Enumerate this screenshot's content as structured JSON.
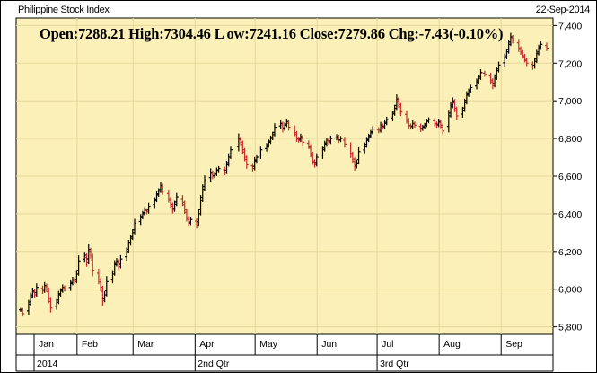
{
  "header": {
    "title": "Philippine Stock Index",
    "date": "22-Sep-2014",
    "ohlc": {
      "open": "Open:7288.21",
      "high": "High:7304.46",
      "low": "L ow:7241.16",
      "close": "Close:7279.86",
      "change": "Chg:-7.43(-0.10%)"
    }
  },
  "colors": {
    "plot_bg": "#fbf0b8",
    "grid": "#e6d79a",
    "up_bar": "#000000",
    "down_bar": "#cc2a2a",
    "frame": "#000000"
  },
  "chart_data": {
    "type": "ohlc",
    "title": "Philippine Stock Index",
    "ylim": [
      5760,
      7440
    ],
    "yticks": [
      "5,800",
      "6,000",
      "6,200",
      "6,400",
      "6,600",
      "6,800",
      "7,000",
      "7,200",
      "7,400"
    ],
    "ytick_values": [
      5800,
      6000,
      6200,
      6400,
      6600,
      6800,
      7000,
      7200,
      7400
    ],
    "x_axis": {
      "months": [
        "Jan",
        "Feb",
        "Mar",
        "Apr",
        "May",
        "Jun",
        "Jul",
        "Aug",
        "Sep"
      ],
      "periods": [
        "2014",
        "2nd Qtr",
        "3rd Qtr"
      ],
      "start": "2014-01-02",
      "end": "2014-09-22"
    },
    "grid": true,
    "series": [
      {
        "points": [
          [
            "2014-01-02",
            5890
          ],
          [
            "2014-01-03",
            5870
          ],
          [
            "2014-01-06",
            5920
          ],
          [
            "2014-01-07",
            5960
          ],
          [
            "2014-01-08",
            5990
          ],
          [
            "2014-01-09",
            5970
          ],
          [
            "2014-01-10",
            6010
          ],
          [
            "2014-01-13",
            5990
          ],
          [
            "2014-01-14",
            6020
          ],
          [
            "2014-01-15",
            6000
          ],
          [
            "2014-01-16",
            5950
          ],
          [
            "2014-01-17",
            5900
          ],
          [
            "2014-01-20",
            5930
          ],
          [
            "2014-01-21",
            5970
          ],
          [
            "2014-01-22",
            5990
          ],
          [
            "2014-01-23",
            6010
          ],
          [
            "2014-01-24",
            6000
          ],
          [
            "2014-01-27",
            6030
          ],
          [
            "2014-01-28",
            6050
          ],
          [
            "2014-01-29",
            6040
          ],
          [
            "2014-01-30",
            6080
          ],
          [
            "2014-01-31",
            6150
          ],
          [
            "2014-02-03",
            6180
          ],
          [
            "2014-02-04",
            6140
          ],
          [
            "2014-02-05",
            6210
          ],
          [
            "2014-02-06",
            6180
          ],
          [
            "2014-02-07",
            6100
          ],
          [
            "2014-02-10",
            6050
          ],
          [
            "2014-02-11",
            6010
          ],
          [
            "2014-02-12",
            5940
          ],
          [
            "2014-02-13",
            5970
          ],
          [
            "2014-02-14",
            6040
          ],
          [
            "2014-02-17",
            6080
          ],
          [
            "2014-02-18",
            6130
          ],
          [
            "2014-02-19",
            6150
          ],
          [
            "2014-02-20",
            6120
          ],
          [
            "2014-02-21",
            6160
          ],
          [
            "2014-02-24",
            6200
          ],
          [
            "2014-02-25",
            6240
          ],
          [
            "2014-02-26",
            6270
          ],
          [
            "2014-02-27",
            6300
          ],
          [
            "2014-02-28",
            6350
          ],
          [
            "2014-03-03",
            6380
          ],
          [
            "2014-03-04",
            6400
          ],
          [
            "2014-03-05",
            6420
          ],
          [
            "2014-03-06",
            6410
          ],
          [
            "2014-03-07",
            6440
          ],
          [
            "2014-03-10",
            6470
          ],
          [
            "2014-03-11",
            6500
          ],
          [
            "2014-03-12",
            6520
          ],
          [
            "2014-03-13",
            6550
          ],
          [
            "2014-03-14",
            6520
          ],
          [
            "2014-03-17",
            6480
          ],
          [
            "2014-03-18",
            6450
          ],
          [
            "2014-03-19",
            6420
          ],
          [
            "2014-03-20",
            6450
          ],
          [
            "2014-03-21",
            6490
          ],
          [
            "2014-03-24",
            6460
          ],
          [
            "2014-03-25",
            6420
          ],
          [
            "2014-03-26",
            6380
          ],
          [
            "2014-03-27",
            6350
          ],
          [
            "2014-03-28",
            6370
          ],
          [
            "2014-03-31",
            6340
          ],
          [
            "2014-04-01",
            6400
          ],
          [
            "2014-04-02",
            6470
          ],
          [
            "2014-04-03",
            6530
          ],
          [
            "2014-04-04",
            6580
          ],
          [
            "2014-04-07",
            6620
          ],
          [
            "2014-04-08",
            6600
          ],
          [
            "2014-04-09",
            6610
          ],
          [
            "2014-04-10",
            6630
          ],
          [
            "2014-04-11",
            6640
          ],
          [
            "2014-04-14",
            6620
          ],
          [
            "2014-04-15",
            6660
          ],
          [
            "2014-04-16",
            6700
          ],
          [
            "2014-04-17",
            6740
          ],
          [
            "2014-04-21",
            6800
          ],
          [
            "2014-04-22",
            6780
          ],
          [
            "2014-04-23",
            6740
          ],
          [
            "2014-04-24",
            6700
          ],
          [
            "2014-04-25",
            6660
          ],
          [
            "2014-04-28",
            6640
          ],
          [
            "2014-04-29",
            6680
          ],
          [
            "2014-04-30",
            6700
          ],
          [
            "2014-05-02",
            6740
          ],
          [
            "2014-05-05",
            6760
          ],
          [
            "2014-05-06",
            6780
          ],
          [
            "2014-05-07",
            6800
          ],
          [
            "2014-05-08",
            6820
          ],
          [
            "2014-05-09",
            6860
          ],
          [
            "2014-05-12",
            6880
          ],
          [
            "2014-05-13",
            6850
          ],
          [
            "2014-05-14",
            6870
          ],
          [
            "2014-05-15",
            6890
          ],
          [
            "2014-05-16",
            6860
          ],
          [
            "2014-05-19",
            6830
          ],
          [
            "2014-05-20",
            6800
          ],
          [
            "2014-05-21",
            6790
          ],
          [
            "2014-05-22",
            6810
          ],
          [
            "2014-05-23",
            6780
          ],
          [
            "2014-05-26",
            6760
          ],
          [
            "2014-05-27",
            6720
          ],
          [
            "2014-05-28",
            6680
          ],
          [
            "2014-05-29",
            6660
          ],
          [
            "2014-05-30",
            6700
          ],
          [
            "2014-06-02",
            6740
          ],
          [
            "2014-06-03",
            6770
          ],
          [
            "2014-06-04",
            6790
          ],
          [
            "2014-06-05",
            6780
          ],
          [
            "2014-06-06",
            6800
          ],
          [
            "2014-06-09",
            6810
          ],
          [
            "2014-06-10",
            6790
          ],
          [
            "2014-06-11",
            6800
          ],
          [
            "2014-06-13",
            6770
          ],
          [
            "2014-06-16",
            6720
          ],
          [
            "2014-06-17",
            6690
          ],
          [
            "2014-06-18",
            6650
          ],
          [
            "2014-06-19",
            6670
          ],
          [
            "2014-06-20",
            6730
          ],
          [
            "2014-06-23",
            6760
          ],
          [
            "2014-06-24",
            6790
          ],
          [
            "2014-06-25",
            6810
          ],
          [
            "2014-06-26",
            6830
          ],
          [
            "2014-06-27",
            6850
          ],
          [
            "2014-06-30",
            6840
          ],
          [
            "2014-07-01",
            6870
          ],
          [
            "2014-07-02",
            6860
          ],
          [
            "2014-07-03",
            6880
          ],
          [
            "2014-07-04",
            6900
          ],
          [
            "2014-07-07",
            6930
          ],
          [
            "2014-07-08",
            6960
          ],
          [
            "2014-07-09",
            7010
          ],
          [
            "2014-07-10",
            6980
          ],
          [
            "2014-07-11",
            6940
          ],
          [
            "2014-07-14",
            6900
          ],
          [
            "2014-07-15",
            6870
          ],
          [
            "2014-07-16",
            6860
          ],
          [
            "2014-07-17",
            6880
          ],
          [
            "2014-07-18",
            6870
          ],
          [
            "2014-07-21",
            6850
          ],
          [
            "2014-07-22",
            6860
          ],
          [
            "2014-07-23",
            6870
          ],
          [
            "2014-07-24",
            6890
          ],
          [
            "2014-07-25",
            6900
          ],
          [
            "2014-07-28",
            6880
          ],
          [
            "2014-07-29",
            6870
          ],
          [
            "2014-07-30",
            6890
          ],
          [
            "2014-07-31",
            6870
          ],
          [
            "2014-08-01",
            6840
          ],
          [
            "2014-08-04",
            6920
          ],
          [
            "2014-08-05",
            6970
          ],
          [
            "2014-08-06",
            7000
          ],
          [
            "2014-08-07",
            6960
          ],
          [
            "2014-08-08",
            6920
          ],
          [
            "2014-08-11",
            6950
          ],
          [
            "2014-08-12",
            6990
          ],
          [
            "2014-08-13",
            7030
          ],
          [
            "2014-08-14",
            7050
          ],
          [
            "2014-08-15",
            7070
          ],
          [
            "2014-08-18",
            7100
          ],
          [
            "2014-08-19",
            7120
          ],
          [
            "2014-08-20",
            7150
          ],
          [
            "2014-08-22",
            7140
          ],
          [
            "2014-08-25",
            7110
          ],
          [
            "2014-08-26",
            7080
          ],
          [
            "2014-08-27",
            7120
          ],
          [
            "2014-08-28",
            7160
          ],
          [
            "2014-08-29",
            7190
          ],
          [
            "2014-09-01",
            7230
          ],
          [
            "2014-09-02",
            7260
          ],
          [
            "2014-09-03",
            7300
          ],
          [
            "2014-09-04",
            7340
          ],
          [
            "2014-09-05",
            7320
          ],
          [
            "2014-09-08",
            7280
          ],
          [
            "2014-09-09",
            7260
          ],
          [
            "2014-09-10",
            7240
          ],
          [
            "2014-09-11",
            7220
          ],
          [
            "2014-09-12",
            7200
          ],
          [
            "2014-09-15",
            7180
          ],
          [
            "2014-09-16",
            7210
          ],
          [
            "2014-09-17",
            7250
          ],
          [
            "2014-09-18",
            7280
          ],
          [
            "2014-09-19",
            7300
          ],
          [
            "2014-09-22",
            7279.86
          ]
        ]
      }
    ]
  }
}
